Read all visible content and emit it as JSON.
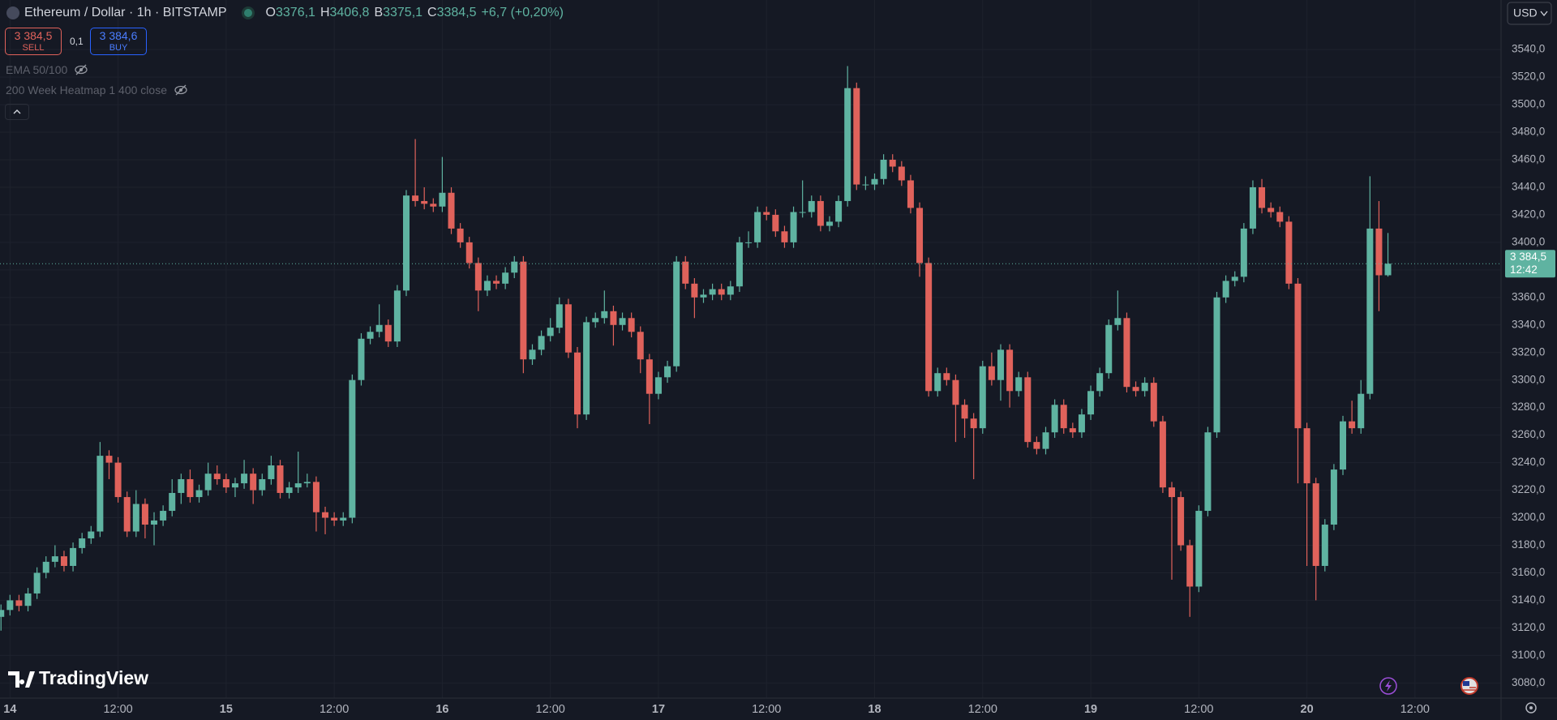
{
  "header": {
    "title": "Ethereum / Dollar · 1h · BITSTAMP",
    "ohlc": [
      {
        "key": "O",
        "value": "3376,1"
      },
      {
        "key": "H",
        "value": "3406,8"
      },
      {
        "key": "B",
        "value": "3375,1"
      },
      {
        "key": "C",
        "value": "3384,5"
      }
    ],
    "change": "+6,7 (+0,20%)"
  },
  "trade": {
    "sell_price": "3 384,5",
    "sell": "SELL",
    "spread": "0,1",
    "buy_price": "3 384,6",
    "buy": "BUY"
  },
  "indicators": [
    "EMA 50/100",
    "200 Week Heatmap 1 400 close"
  ],
  "currency": "USD",
  "logo": "TradingView",
  "chart_data": {
    "type": "candlestick",
    "up_color": "#5fb3a1",
    "down_color": "#e0625b",
    "grid": true,
    "price_label": "3 384,5",
    "countdown": "12:42",
    "ylim": [
      3069,
      3576
    ],
    "yticks": [
      {
        "value": 3080,
        "label": "3080,0"
      },
      {
        "value": 3100,
        "label": "3100,0"
      },
      {
        "value": 3120,
        "label": "3120,0"
      },
      {
        "value": 3140,
        "label": "3140,0"
      },
      {
        "value": 3160,
        "label": "3160,0"
      },
      {
        "value": 3180,
        "label": "3180,0"
      },
      {
        "value": 3200,
        "label": "3200,0"
      },
      {
        "value": 3220,
        "label": "3220,0"
      },
      {
        "value": 3240,
        "label": "3240,0"
      },
      {
        "value": 3260,
        "label": "3260,0"
      },
      {
        "value": 3280,
        "label": "3280,0"
      },
      {
        "value": 3300,
        "label": "3300,0"
      },
      {
        "value": 3320,
        "label": "3320,0"
      },
      {
        "value": 3340,
        "label": "3340,0"
      },
      {
        "value": 3360,
        "label": "3360,0"
      },
      {
        "value": 3380,
        "label": "3380,0"
      },
      {
        "value": 3400,
        "label": "3400,0"
      },
      {
        "value": 3420,
        "label": "3420,0"
      },
      {
        "value": 3440,
        "label": "3440,0"
      },
      {
        "value": 3460,
        "label": "3460,0"
      },
      {
        "value": 3480,
        "label": "3480,0"
      },
      {
        "value": 3500,
        "label": "3500,0"
      },
      {
        "value": 3520,
        "label": "3520,0"
      },
      {
        "value": 3540,
        "label": "3540,0"
      }
    ],
    "categories": [
      null,
      "14",
      null,
      null,
      null,
      null,
      null,
      null,
      null,
      null,
      null,
      null,
      null,
      "12:00",
      null,
      null,
      null,
      null,
      null,
      null,
      null,
      null,
      null,
      null,
      null,
      "15",
      null,
      null,
      null,
      null,
      null,
      null,
      null,
      null,
      null,
      null,
      null,
      "12:00",
      null,
      null,
      null,
      null,
      null,
      null,
      null,
      null,
      null,
      null,
      null,
      "16",
      null,
      null,
      null,
      null,
      null,
      null,
      null,
      null,
      null,
      null,
      null,
      "12:00",
      null,
      null,
      null,
      null,
      null,
      null,
      null,
      null,
      null,
      null,
      null,
      "17",
      null,
      null,
      null,
      null,
      null,
      null,
      null,
      null,
      null,
      null,
      null,
      "12:00",
      null,
      null,
      null,
      null,
      null,
      null,
      null,
      null,
      null,
      null,
      null,
      "18",
      null,
      null,
      null,
      null,
      null,
      null,
      null,
      null,
      null,
      null,
      null,
      "12:00",
      null,
      null,
      null,
      null,
      null,
      null,
      null,
      null,
      null,
      null,
      null,
      "19",
      null,
      null,
      null,
      null,
      null,
      null,
      null,
      null,
      null,
      null,
      null,
      "12:00",
      null,
      null,
      null,
      null,
      null,
      null,
      null,
      null,
      null,
      null,
      null,
      "20",
      null,
      null,
      null,
      null,
      null,
      null,
      null,
      null,
      null,
      null,
      null,
      "12:00"
    ],
    "open": [
      3128,
      3133,
      3140,
      3136,
      3145,
      3160,
      3168,
      3172,
      3165,
      3178,
      3185,
      3190,
      3245,
      3240,
      3215,
      3190,
      3210,
      3195,
      3198,
      3205,
      3218,
      3228,
      3215,
      3220,
      3232,
      3228,
      3222,
      3225,
      3232,
      3220,
      3228,
      3238,
      3218,
      3222,
      3225,
      3226,
      3204,
      3200,
      3198,
      3200,
      3300,
      3330,
      3335,
      3340,
      3328,
      3365,
      3434,
      3430,
      3428,
      3426,
      3436,
      3410,
      3400,
      3385,
      3365,
      3372,
      3370,
      3378,
      3386,
      3315,
      3322,
      3332,
      3338,
      3355,
      3320,
      3275,
      3342,
      3345,
      3350,
      3340,
      3345,
      3335,
      3315,
      3290,
      3302,
      3310,
      3386,
      3370,
      3360,
      3362,
      3366,
      3362,
      3368,
      3400,
      3400,
      3422,
      3420,
      3408,
      3400,
      3422,
      3422,
      3430,
      3412,
      3415,
      3430,
      3512,
      3442,
      3442,
      3446,
      3460,
      3455,
      3445,
      3425,
      3385,
      3292,
      3305,
      3300,
      3282,
      3272,
      3265,
      3310,
      3300,
      3322,
      3292,
      3302,
      3255,
      3250,
      3262,
      3282,
      3265,
      3262,
      3275,
      3292,
      3305,
      3340,
      3345,
      3295,
      3292,
      3298,
      3270,
      3222,
      3215,
      3180,
      3150,
      3205,
      3262,
      3360,
      3372,
      3375,
      3410,
      3440,
      3425,
      3422,
      3415,
      3370,
      3265,
      3225,
      3165,
      3195,
      3235,
      3270,
      3265,
      3290,
      3410,
      3376.1,
      null,
      null,
      null
    ],
    "high": [
      3137,
      3144,
      3144,
      3149,
      3164,
      3172,
      3180,
      3176,
      3182,
      3189,
      3194,
      3255,
      3249,
      3244,
      3219,
      3220,
      3214,
      3204,
      3209,
      3228,
      3232,
      3235,
      3224,
      3240,
      3238,
      3232,
      3229,
      3242,
      3236,
      3232,
      3245,
      3242,
      3226,
      3248,
      3232,
      3230,
      3208,
      3204,
      3204,
      3304,
      3334,
      3339,
      3355,
      3344,
      3369,
      3438,
      3475,
      3440,
      3432,
      3462,
      3440,
      3414,
      3404,
      3389,
      3376,
      3376,
      3382,
      3390,
      3390,
      3326,
      3336,
      3345,
      3360,
      3359,
      3324,
      3346,
      3349,
      3365,
      3354,
      3349,
      3349,
      3339,
      3319,
      3306,
      3314,
      3390,
      3390,
      3374,
      3366,
      3370,
      3370,
      3372,
      3404,
      3408,
      3426,
      3426,
      3424,
      3412,
      3426,
      3445,
      3434,
      3434,
      3419,
      3434,
      3528,
      3516,
      3448,
      3450,
      3464,
      3464,
      3459,
      3449,
      3429,
      3389,
      3309,
      3309,
      3304,
      3286,
      3276,
      3314,
      3320,
      3326,
      3326,
      3306,
      3306,
      3259,
      3266,
      3286,
      3286,
      3269,
      3279,
      3296,
      3309,
      3344,
      3365,
      3349,
      3299,
      3302,
      3302,
      3274,
      3226,
      3219,
      3184,
      3209,
      3266,
      3364,
      3376,
      3379,
      3414,
      3445,
      3446,
      3429,
      3426,
      3419,
      3374,
      3269,
      3229,
      3199,
      3239,
      3274,
      3285,
      3300,
      3448,
      3430,
      3406.8,
      null,
      null,
      null
    ],
    "low": [
      3118,
      3129,
      3132,
      3132,
      3141,
      3156,
      3164,
      3161,
      3161,
      3174,
      3181,
      3186,
      3228,
      3211,
      3186,
      3186,
      3185,
      3180,
      3194,
      3201,
      3210,
      3211,
      3211,
      3216,
      3224,
      3218,
      3215,
      3221,
      3210,
      3216,
      3224,
      3214,
      3214,
      3218,
      3222,
      3190,
      3188,
      3194,
      3194,
      3196,
      3296,
      3326,
      3331,
      3324,
      3324,
      3361,
      3426,
      3424,
      3422,
      3422,
      3406,
      3396,
      3381,
      3350,
      3361,
      3366,
      3366,
      3374,
      3305,
      3311,
      3318,
      3328,
      3334,
      3316,
      3265,
      3271,
      3338,
      3341,
      3325,
      3336,
      3331,
      3305,
      3268,
      3286,
      3298,
      3306,
      3366,
      3345,
      3356,
      3358,
      3358,
      3358,
      3364,
      3396,
      3396,
      3416,
      3404,
      3396,
      3396,
      3418,
      3418,
      3408,
      3408,
      3411,
      3426,
      3438,
      3438,
      3438,
      3442,
      3451,
      3441,
      3421,
      3375,
      3288,
      3288,
      3296,
      3255,
      3258,
      3228,
      3261,
      3296,
      3285,
      3280,
      3288,
      3251,
      3246,
      3246,
      3258,
      3261,
      3258,
      3258,
      3271,
      3288,
      3301,
      3336,
      3291,
      3288,
      3288,
      3266,
      3218,
      3155,
      3176,
      3128,
      3146,
      3201,
      3258,
      3356,
      3368,
      3371,
      3406,
      3421,
      3418,
      3411,
      3366,
      3225,
      3165,
      3140,
      3161,
      3191,
      3231,
      3261,
      3261,
      3286,
      3350,
      3375.1,
      null,
      null,
      null
    ],
    "close": [
      3133,
      3140,
      3136,
      3145,
      3160,
      3168,
      3172,
      3165,
      3178,
      3185,
      3190,
      3245,
      3240,
      3215,
      3190,
      3210,
      3195,
      3198,
      3205,
      3218,
      3228,
      3215,
      3220,
      3232,
      3228,
      3222,
      3225,
      3232,
      3220,
      3228,
      3238,
      3218,
      3222,
      3225,
      3226,
      3204,
      3200,
      3198,
      3200,
      3300,
      3330,
      3335,
      3340,
      3328,
      3365,
      3434,
      3430,
      3428,
      3426,
      3436,
      3410,
      3400,
      3385,
      3365,
      3372,
      3370,
      3378,
      3386,
      3315,
      3322,
      3332,
      3338,
      3355,
      3320,
      3275,
      3342,
      3345,
      3350,
      3340,
      3345,
      3335,
      3315,
      3290,
      3302,
      3310,
      3386,
      3370,
      3360,
      3362,
      3366,
      3362,
      3368,
      3400,
      3400,
      3422,
      3420,
      3408,
      3400,
      3422,
      3422,
      3430,
      3412,
      3415,
      3430,
      3512,
      3442,
      3442,
      3446,
      3460,
      3455,
      3445,
      3425,
      3385,
      3292,
      3305,
      3300,
      3282,
      3272,
      3265,
      3310,
      3300,
      3322,
      3292,
      3302,
      3255,
      3250,
      3262,
      3282,
      3265,
      3262,
      3275,
      3292,
      3305,
      3340,
      3345,
      3295,
      3292,
      3298,
      3270,
      3222,
      3215,
      3180,
      3150,
      3205,
      3262,
      3360,
      3372,
      3375,
      3410,
      3440,
      3425,
      3422,
      3415,
      3370,
      3265,
      3225,
      3165,
      3195,
      3235,
      3270,
      3265,
      3290,
      3410,
      3376.1,
      3384.5,
      null,
      null,
      null
    ]
  }
}
